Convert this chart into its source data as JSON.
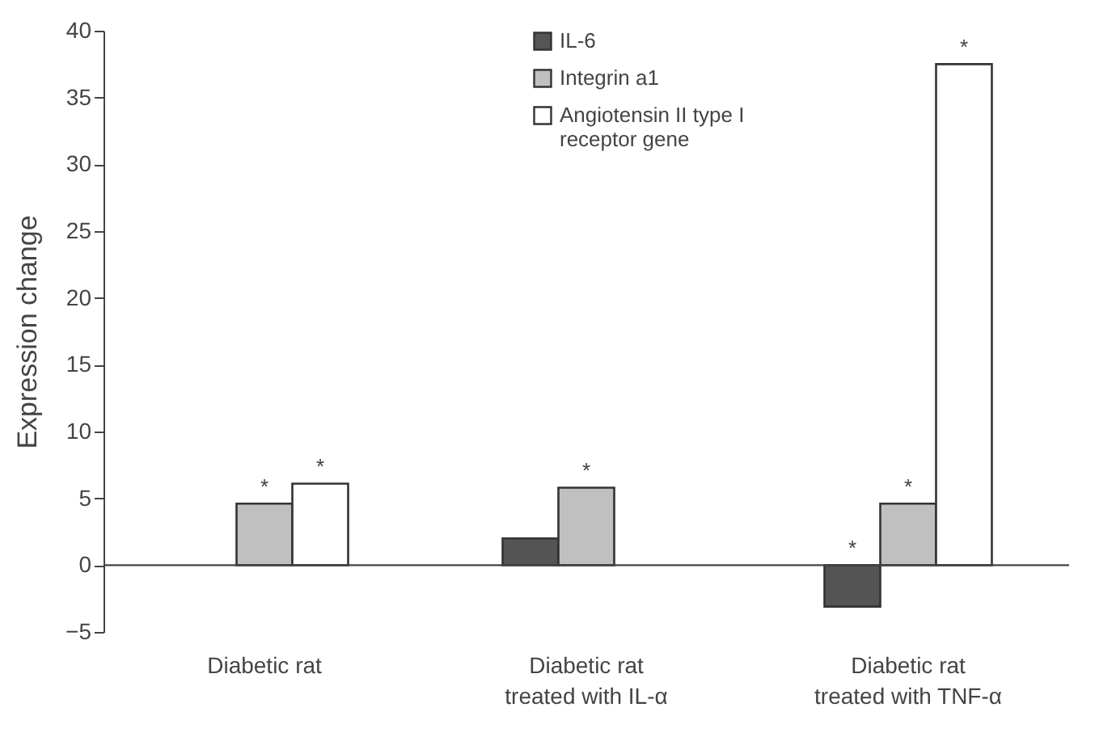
{
  "chart_data": {
    "type": "bar",
    "ylabel": "Expression change",
    "categories": [
      "Diabetic rat",
      "Diabetic rat\ntreated with IL-α",
      "Diabetic rat\ntreated with TNF-α"
    ],
    "series": [
      {
        "name": "IL-6",
        "color": "#555555",
        "values": [
          null,
          2.0,
          -3.1
        ],
        "value_labels": [
          null,
          null,
          "*"
        ]
      },
      {
        "name": "Integrin a1",
        "color": "#c0c0c0",
        "values": [
          4.6,
          5.8,
          4.6
        ],
        "value_labels": [
          "*",
          "*",
          "*"
        ]
      },
      {
        "name": "Angiotensin II type I\nreceptor gene",
        "color": "#ffffff",
        "values": [
          6.1,
          null,
          37.5
        ],
        "value_labels": [
          "*",
          null,
          "*"
        ]
      }
    ],
    "ylim": [
      -5,
      40
    ],
    "yticks": [
      -5,
      0,
      5,
      10,
      15,
      20,
      25,
      30,
      35,
      40
    ],
    "ref_lines": [
      {
        "axis": "y",
        "value": 0
      }
    ],
    "grid": false,
    "legend": "top right"
  }
}
